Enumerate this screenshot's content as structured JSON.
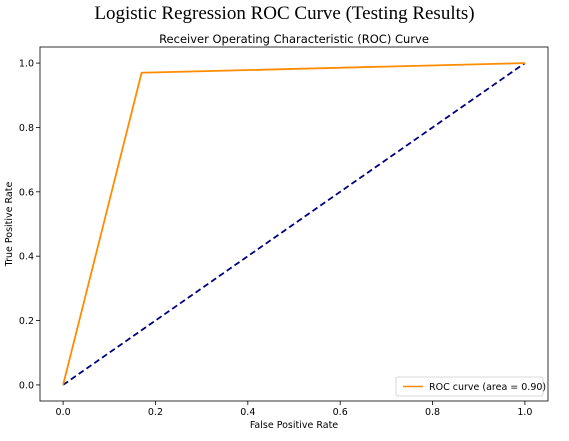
{
  "caption": "Logistic Regression ROC Curve (Testing Results)",
  "chart_data": {
    "type": "line",
    "title": "Receiver Operating Characteristic (ROC) Curve",
    "xlabel": "False Positive Rate",
    "ylabel": "True Positive Rate",
    "xlim": [
      -0.05,
      1.05
    ],
    "ylim": [
      -0.05,
      1.05
    ],
    "xticks": [
      0.0,
      0.2,
      0.4,
      0.6,
      0.8,
      1.0
    ],
    "yticks": [
      0.0,
      0.2,
      0.4,
      0.6,
      0.8,
      1.0
    ],
    "xtick_labels": [
      "0.0",
      "0.2",
      "0.4",
      "0.6",
      "0.8",
      "1.0"
    ],
    "ytick_labels": [
      "0.0",
      "0.2",
      "0.4",
      "0.6",
      "0.8",
      "1.0"
    ],
    "grid": false,
    "legend_position": "lower right",
    "series": [
      {
        "name": "ROC curve (area = 0.90)",
        "color": "#ff8c00",
        "style": "solid",
        "x": [
          0.0,
          0.17,
          1.0
        ],
        "y": [
          0.0,
          0.97,
          1.0
        ]
      },
      {
        "color": "#000080",
        "style": "dashed",
        "x": [
          0.0,
          1.0
        ],
        "y": [
          0.0,
          1.0
        ]
      }
    ]
  }
}
